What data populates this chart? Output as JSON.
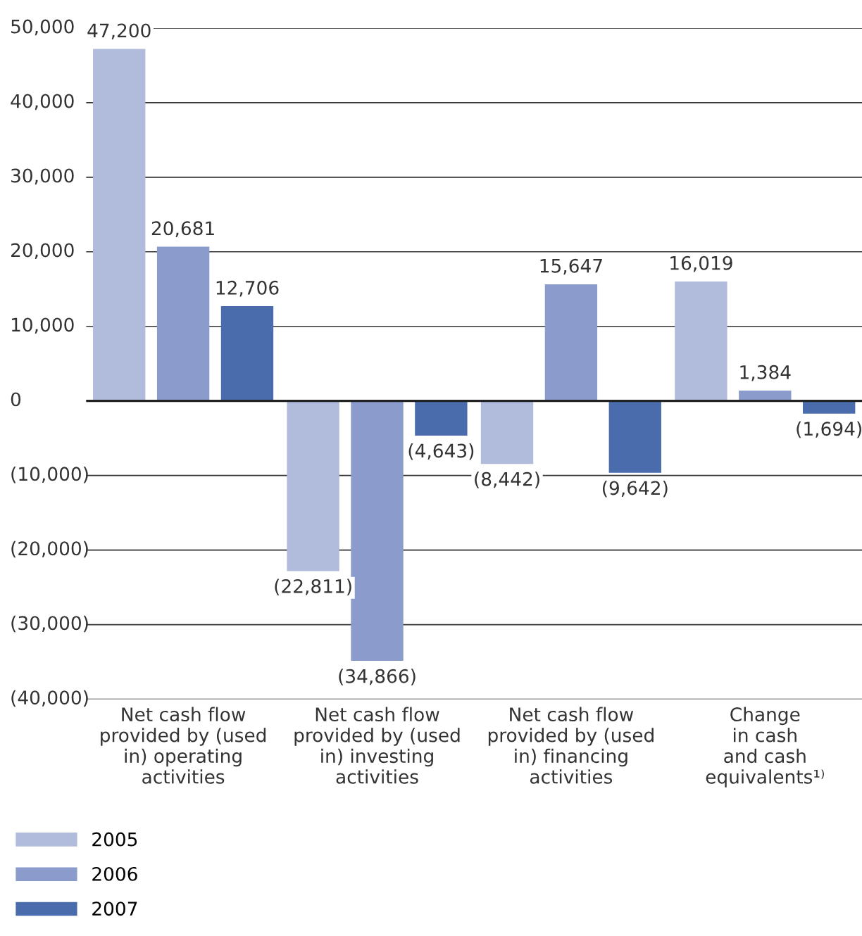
{
  "chart_data": {
    "type": "bar",
    "categories": [
      "Net cash flow\nprovided by (used\nin) operating\nactivities",
      "Net cash flow\nprovided by (used\nin) investing\nactivities",
      "Net cash flow\nprovided by (used\nin) financing\nactivities",
      "Change\nin cash\nand cash\nequivalents¹⁾"
    ],
    "series": [
      {
        "name": "2005",
        "color": "#b1bcdc",
        "values": [
          47200,
          -22811,
          -8442,
          16019
        ],
        "value_labels": [
          "47,200",
          "(22,811)",
          "(8,442)",
          "16,019"
        ]
      },
      {
        "name": "2006",
        "color": "#8b9bcb",
        "values": [
          20681,
          -34866,
          15647,
          1384
        ],
        "value_labels": [
          "20,681",
          "(34,866)",
          "15,647",
          "1,384"
        ]
      },
      {
        "name": "2007",
        "color": "#4a6cad",
        "values": [
          12706,
          -4643,
          -9642,
          -1694
        ],
        "value_labels": [
          "12,706",
          "(4,643)",
          "(9,642)",
          "(1,694)"
        ]
      }
    ],
    "ylim": [
      -40000,
      50000
    ],
    "yticks": [
      {
        "value": -40000,
        "label": "(40,000)"
      },
      {
        "value": -30000,
        "label": "(30,000)"
      },
      {
        "value": -20000,
        "label": "(20,000)"
      },
      {
        "value": -10000,
        "label": "(10,000)"
      },
      0,
      {
        "value": 10000,
        "label": "10,000"
      },
      {
        "value": 20000,
        "label": "20,000"
      },
      {
        "value": 30000,
        "label": "30,000"
      },
      {
        "value": 40000,
        "label": "40,000"
      },
      {
        "value": 50000,
        "label": "50,000"
      }
    ],
    "grid": "y",
    "legend": "bottom left"
  }
}
